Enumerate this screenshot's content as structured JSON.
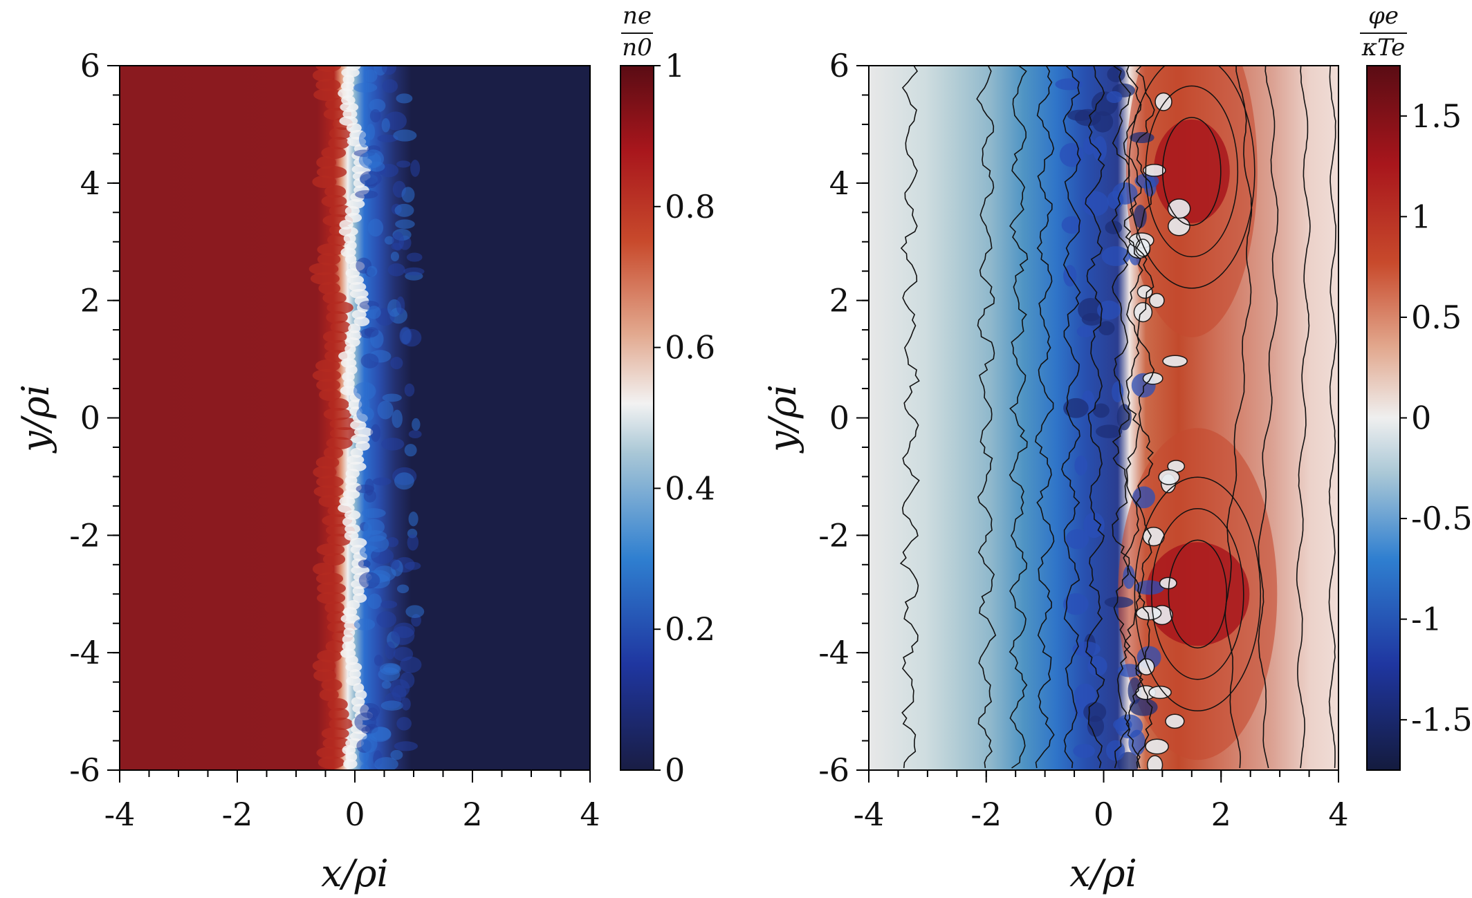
{
  "chart_data": [
    {
      "type": "heatmap",
      "title": "",
      "xlabel": "x/ρi",
      "ylabel": "y/ρi",
      "xlim": [
        -4,
        4
      ],
      "ylim": [
        -6,
        6
      ],
      "xticks": [
        "-4",
        "-2",
        "0",
        "2",
        "4"
      ],
      "yticks": [
        "-6",
        "-4",
        "-2",
        "0",
        "2",
        "4",
        "6"
      ],
      "colorbar": {
        "label_num": "ne",
        "label_den": "n0",
        "range": [
          0,
          1
        ],
        "ticks": [
          "0",
          "0.2",
          "0.4",
          "0.6",
          "0.8",
          "1"
        ],
        "colors": [
          "#191d44",
          "#1f3fb0",
          "#2f7fd0",
          "#f2f2f2",
          "#d0502e",
          "#b0161c",
          "#5a0c14"
        ]
      },
      "description_values": {
        "high_density_region_x": [
          -4,
          -0.5
        ],
        "transition_region_x": [
          -0.5,
          1.2
        ],
        "low_density_region_x": [
          1.2,
          4
        ]
      }
    },
    {
      "type": "heatmap",
      "title": "",
      "xlabel": "x/ρi",
      "ylabel": "y/ρi",
      "xlim": [
        -4,
        4
      ],
      "ylim": [
        -6,
        6
      ],
      "xticks": [
        "-4",
        "-2",
        "0",
        "2",
        "4"
      ],
      "yticks": [
        "-6",
        "-4",
        "-2",
        "0",
        "2",
        "4",
        "6"
      ],
      "colorbar": {
        "label_num": "φe",
        "label_den": "κTe",
        "range": [
          -1.75,
          1.75
        ],
        "ticks": [
          "-1.5",
          "-1",
          "-0.5",
          "0",
          "0.5",
          "1",
          "1.5"
        ],
        "colors": [
          "#141b3e",
          "#1f3fb0",
          "#2f7fd0",
          "#9fc3d0",
          "#efefef",
          "#e2a890",
          "#c8553a",
          "#a8161c",
          "#5a0c14"
        ]
      },
      "contours": true
    }
  ]
}
